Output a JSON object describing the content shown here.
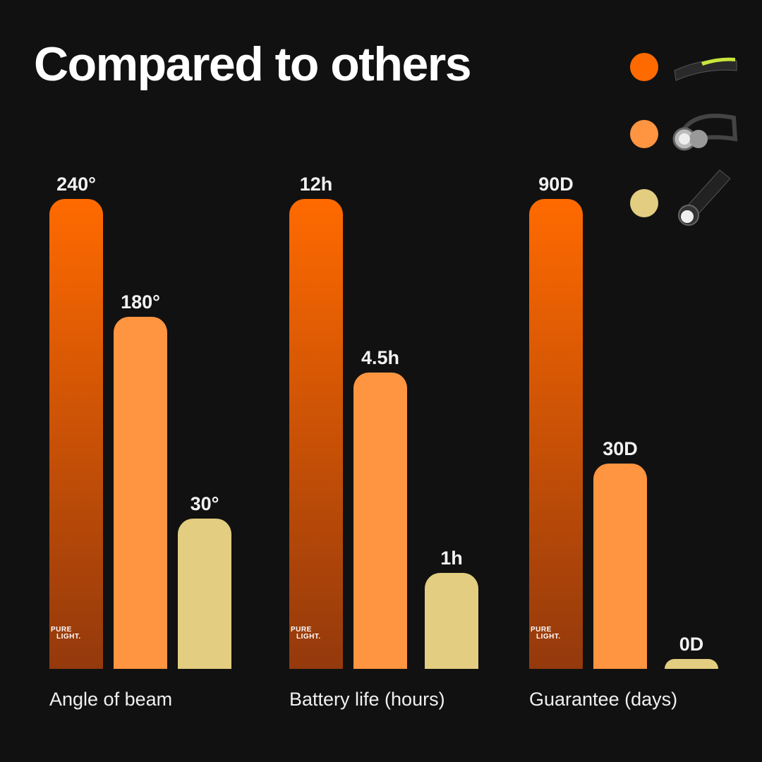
{
  "title": "Compared to others",
  "logo_text": "PURE LIGHT.",
  "colors": {
    "background": "#111111",
    "primary_top": "#ff6a00",
    "primary_bottom": "#94390c",
    "secondary": "#ff9441",
    "tertiary": "#e2cd80"
  },
  "legend": [
    {
      "color": "#ff6a00",
      "icon": "led-strip-headlamp-icon"
    },
    {
      "color": "#ff9441",
      "icon": "twin-bulb-headlamp-icon"
    },
    {
      "color": "#e2cd80",
      "icon": "flashlight-icon"
    }
  ],
  "chart_data": {
    "type": "bar",
    "title": "Compared to others",
    "grid": false,
    "legend_placement": "top-right",
    "groups": [
      {
        "category": "Angle of beam",
        "values": [
          240,
          180,
          30
        ],
        "labels": [
          "240°",
          "180°",
          "30°"
        ]
      },
      {
        "category": "Battery life (hours)",
        "values": [
          12,
          4.5,
          1
        ],
        "labels": [
          "12h",
          "4.5h",
          "1h"
        ]
      },
      {
        "category": "Guarantee (days)",
        "values": [
          90,
          30,
          0
        ],
        "labels": [
          "90D",
          "30D",
          "0D"
        ]
      }
    ]
  }
}
